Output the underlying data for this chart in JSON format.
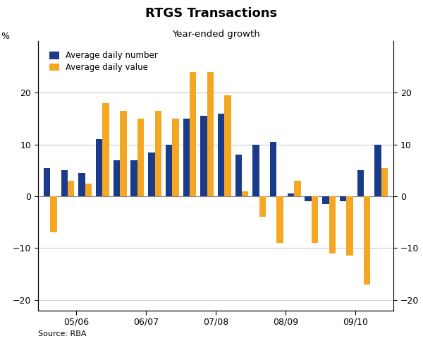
{
  "title": "RTGS Transactions",
  "subtitle": "Year-ended growth",
  "ylabel_left": "%",
  "ylabel_right": "%",
  "source": "Source: RBA",
  "ylim": [
    -22,
    30
  ],
  "yticks": [
    -20,
    -10,
    0,
    10,
    20
  ],
  "legend_labels": [
    "Average daily number",
    "Average daily value"
  ],
  "bar_color_blue": "#1a3a8a",
  "bar_color_orange": "#f5a623",
  "xtick_labels": [
    "05/06",
    "06/07",
    "07/08",
    "08/09",
    "09/10"
  ],
  "blue_values": [
    5.5,
    5.0,
    4.5,
    11.0,
    7.0,
    7.0,
    8.5,
    10.0,
    15.0,
    15.5,
    16.0,
    8.0,
    10.0,
    10.5,
    0.5,
    -1.0,
    -1.5,
    -1.0,
    5.0,
    10.0
  ],
  "orange_values": [
    -7.0,
    3.0,
    2.5,
    18.0,
    16.5,
    15.0,
    16.5,
    15.0,
    24.0,
    24.0,
    19.5,
    1.0,
    -4.0,
    -9.0,
    3.0,
    -9.0,
    -11.0,
    -11.5,
    -17.0,
    5.5
  ],
  "x_positions": [
    1,
    2,
    3,
    4,
    5,
    6,
    7,
    8,
    9,
    10,
    11,
    12,
    13,
    14,
    15,
    16,
    17,
    18,
    19,
    20
  ],
  "xtick_positions": [
    2.5,
    6.5,
    10.5,
    14.5,
    18.5
  ],
  "xlim": [
    0.3,
    20.7
  ]
}
